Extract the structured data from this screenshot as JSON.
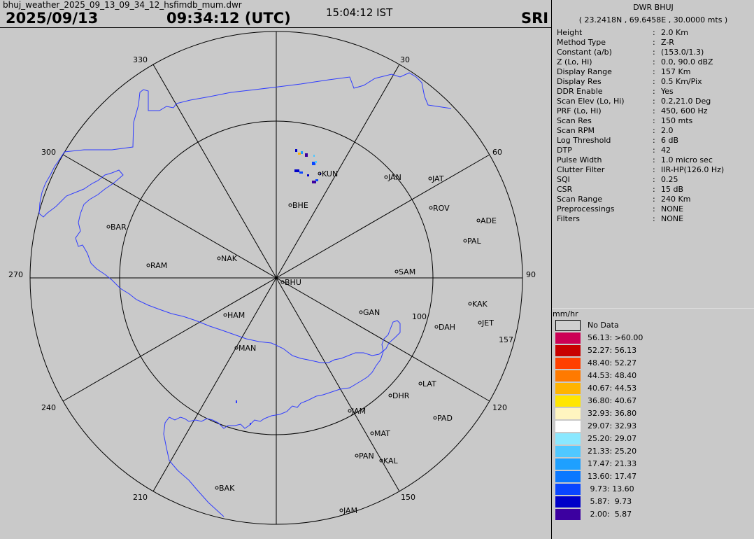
{
  "header": {
    "filename": "bhuj_weather_2025_09_13_09_34_12_hsfimdb_mum.dwr",
    "date": "2025/09/13",
    "time_utc": "09:34:12 (UTC)",
    "time_ist": "15:04:12  IST",
    "product_code": "SRI"
  },
  "panel": {
    "title": "DWR BHUJ",
    "coords": "( 23.2418N , 69.6458E , 30.0000 mts )",
    "params": [
      {
        "label": "Height",
        "value": "2.0 Km"
      },
      {
        "label": "Method Type",
        "value": "Z-R"
      },
      {
        "label": "Constant (a/b)",
        "value": "(153.0/1.3)"
      },
      {
        "label": "Z (Lo, Hi)",
        "value": "0.0, 90.0 dBZ"
      },
      {
        "label": "Display Range",
        "value": "157 Km"
      },
      {
        "label": "Display Res",
        "value": "0.5 Km/Pix"
      },
      {
        "label": "DDR Enable",
        "value": "Yes"
      },
      {
        "label": "Scan Elev (Lo, Hi)",
        "value": "0.2,21.0 Deg"
      },
      {
        "label": "PRF (Lo, Hi)",
        "value": "450, 600 Hz"
      },
      {
        "label": "Scan Res",
        "value": "150 mts"
      },
      {
        "label": "Scan RPM",
        "value": "2.0"
      },
      {
        "label": "Log Threshold",
        "value": "6 dB"
      },
      {
        "label": "DTP",
        "value": "42"
      },
      {
        "label": "Pulse Width",
        "value": "1.0 micro sec"
      },
      {
        "label": "Clutter Filter",
        "value": "IIR-HP(126.0 Hz)"
      },
      {
        "label": "SQI",
        "value": "0.25"
      },
      {
        "label": "CSR",
        "value": "15 dB"
      },
      {
        "label": "Scan Range",
        "value": "240 Km"
      },
      {
        "label": "Preprocessings",
        "value": "NONE"
      },
      {
        "label": "Filters",
        "value": "NONE"
      }
    ]
  },
  "legend": {
    "unit": "mm/hr",
    "no_data": "No Data",
    "items": [
      {
        "label": "56.13: >60.00",
        "color": "#cc0055"
      },
      {
        "label": "52.27: 56.13",
        "color": "#c80000"
      },
      {
        "label": "48.40: 52.27",
        "color": "#ff4000"
      },
      {
        "label": "44.53: 48.40",
        "color": "#ff7a00"
      },
      {
        "label": "40.67: 44.53",
        "color": "#ffb400"
      },
      {
        "label": "36.80: 40.67",
        "color": "#ffe600"
      },
      {
        "label": "32.93: 36.80",
        "color": "#fff5c0"
      },
      {
        "label": "29.07: 32.93",
        "color": "#ffffff"
      },
      {
        "label": "25.20: 29.07",
        "color": "#8ae8ff"
      },
      {
        "label": "21.33: 25.20",
        "color": "#50c8ff"
      },
      {
        "label": "17.47: 21.33",
        "color": "#1ea0ff"
      },
      {
        "label": "13.60: 17.47",
        "color": "#0a78ff"
      },
      {
        "label": " 9.73: 13.60",
        "color": "#0a46ff"
      },
      {
        "label": " 5.87:  9.73",
        "color": "#0000c8"
      },
      {
        "label": " 2.00:  5.87",
        "color": "#3c00a0"
      }
    ]
  },
  "radar": {
    "azimuth_labels": [
      "30",
      "60",
      "90",
      "100",
      "120",
      "150",
      "157",
      "210",
      "240",
      "270",
      "300",
      "330"
    ],
    "stations": [
      "KUN",
      "JAN",
      "JAT",
      "BHE",
      "ROV",
      "ADE",
      "BAR",
      "PAL",
      "NAK",
      "RAM",
      "SAM",
      "BHU",
      "KAK",
      "GAN",
      "JET",
      "HAM",
      "DAH",
      "MAN",
      "LAT",
      "DHR",
      "JAM",
      "PAD",
      "MAT",
      "PAN",
      "KAL",
      "BAK",
      "JAM"
    ],
    "colors": {
      "coastline": "#2f3cff",
      "grid": "#000000",
      "background": "#c9c9c9"
    }
  }
}
